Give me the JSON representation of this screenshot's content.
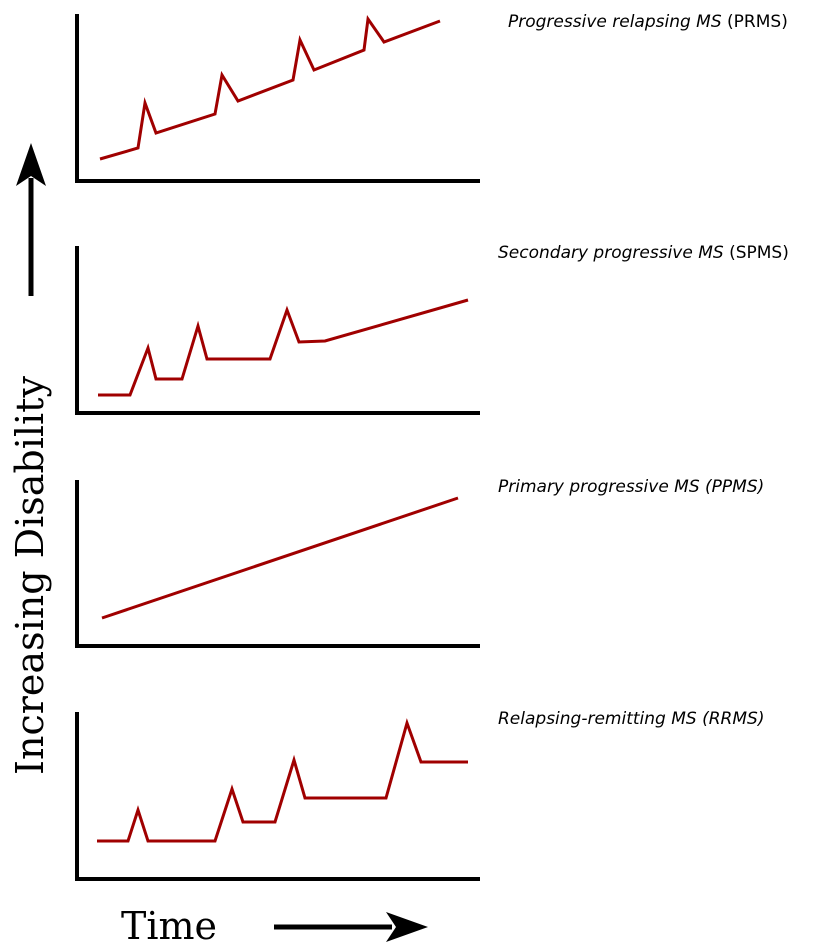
{
  "y_axis": {
    "label": "Increasing Disability"
  },
  "x_axis": {
    "label": "Time"
  },
  "panels": [
    {
      "id": "prms",
      "label_italic": "Progressive relapsing MS",
      "label_plain": " (PRMS)",
      "line_color": "#a00000"
    },
    {
      "id": "spms",
      "label_italic": "Secondary progressive MS",
      "label_plain": " (SPMS)",
      "line_color": "#a00000"
    },
    {
      "id": "ppms",
      "label_italic": "Primary progressive MS (PPMS)",
      "label_plain": "",
      "line_color": "#a00000"
    },
    {
      "id": "rrms",
      "label_italic": "Relapsing-remitting MS (RRMS)",
      "label_plain": "",
      "line_color": "#a00000"
    }
  ]
}
